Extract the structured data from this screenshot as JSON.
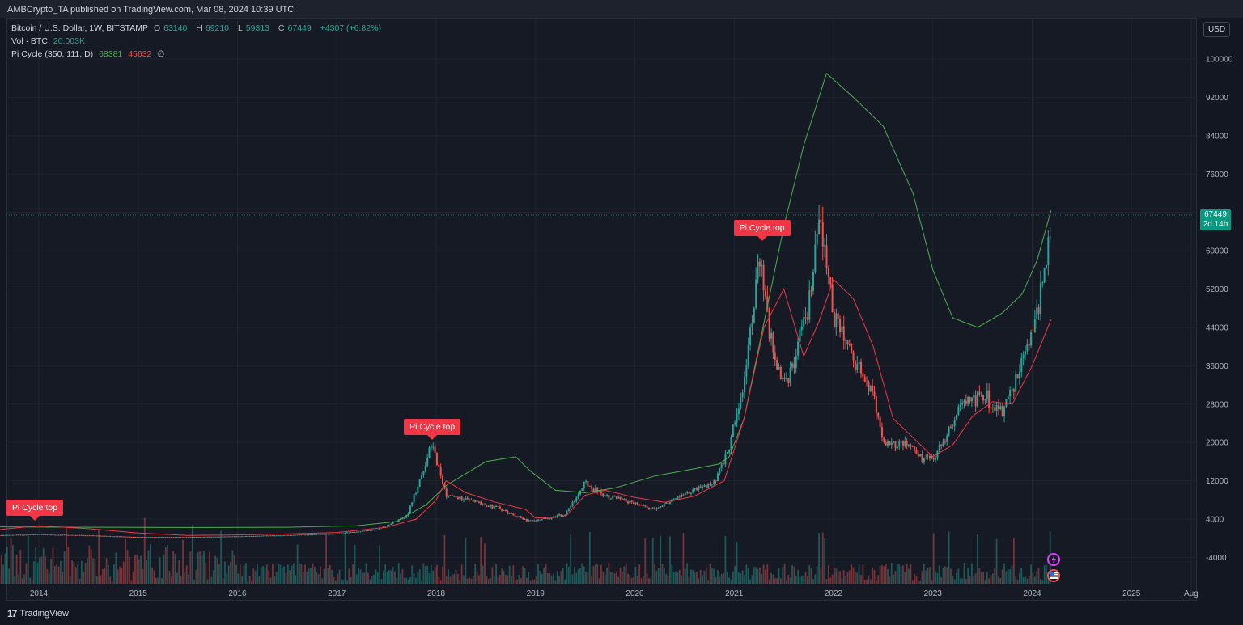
{
  "header": {
    "published": "AMBCrypto_TA published on TradingView.com, Mar 08, 2024 10:39 UTC"
  },
  "legend": {
    "symbol": "Bitcoin / U.S. Dollar, 1W, BITSTAMP",
    "open_label": "O",
    "open": "63140",
    "high_label": "H",
    "high": "69210",
    "low_label": "L",
    "low": "59313",
    "close_label": "C",
    "close": "67449",
    "change": "+4307 (+6.82%)",
    "vol_label": "Vol · BTC",
    "vol_value": "20.003K",
    "pi_label": "Pi Cycle (350, 111, D)",
    "pi_value1": "68381",
    "pi_value2": "45632",
    "pi_empty": "∅"
  },
  "currency_button": "USD",
  "price_tag": {
    "price": "67449",
    "countdown": "2d 14h"
  },
  "brand": "TradingView",
  "colors": {
    "up": "#26a69a",
    "down": "#ef5350",
    "ma_long": "#4caf50",
    "ma_short": "#f23645",
    "callout": "#f23645"
  },
  "icons": [
    "lightning-icon",
    "us-flag-icon"
  ],
  "chart_data": {
    "type": "line",
    "yaxis_ticks": [
      "100000",
      "92000",
      "84000",
      "76000",
      "68000",
      "60000",
      "52000",
      "44000",
      "36000",
      "28000",
      "20000",
      "12000",
      "4000",
      "-4000"
    ],
    "xaxis_ticks": [
      "2014",
      "2015",
      "2016",
      "2017",
      "2018",
      "2019",
      "2020",
      "2021",
      "2022",
      "2023",
      "2024",
      "2025",
      "Aug"
    ],
    "ylim": [
      -8000,
      104000
    ],
    "price_series": {
      "name": "Bitcoin / U.S. Dollar",
      "x": [
        2013.5,
        2014.0,
        2014.5,
        2015.0,
        2015.5,
        2016.0,
        2016.5,
        2017.0,
        2017.4,
        2017.7,
        2017.96,
        2018.1,
        2018.3,
        2018.6,
        2018.9,
        2019.0,
        2019.3,
        2019.5,
        2019.7,
        2019.95,
        2020.2,
        2020.5,
        2020.8,
        2020.95,
        2021.1,
        2021.25,
        2021.4,
        2021.55,
        2021.75,
        2021.86,
        2022.0,
        2022.2,
        2022.4,
        2022.5,
        2022.75,
        2022.9,
        2023.0,
        2023.3,
        2023.5,
        2023.7,
        2023.85,
        2024.0,
        2024.1,
        2024.19
      ],
      "y": [
        600,
        800,
        600,
        250,
        250,
        400,
        650,
        950,
        1800,
        4500,
        19500,
        9000,
        8000,
        6500,
        3800,
        3700,
        5000,
        11500,
        9000,
        7500,
        6000,
        9200,
        11500,
        19000,
        33000,
        58000,
        37000,
        33000,
        48000,
        66000,
        47000,
        38000,
        30000,
        20000,
        19500,
        16500,
        16500,
        28000,
        30000,
        26000,
        34000,
        43000,
        52000,
        67449
      ]
    },
    "series": [
      {
        "name": "Pi Cycle 350",
        "x": [
          2013.5,
          2014.5,
          2015.5,
          2016.5,
          2017.2,
          2017.6,
          2017.9,
          2018.1,
          2018.5,
          2018.8,
          2018.95,
          2019.2,
          2019.5,
          2019.8,
          2020.2,
          2020.6,
          2020.85,
          2020.95,
          2021.1,
          2021.3,
          2021.5,
          2021.7,
          2021.93,
          2022.2,
          2022.5,
          2022.8,
          2023.0,
          2023.2,
          2023.45,
          2023.7,
          2023.9,
          2024.05,
          2024.19
        ],
        "y": [
          2400,
          2300,
          2250,
          2300,
          2600,
          3500,
          7000,
          11000,
          16000,
          17000,
          14000,
          10000,
          9500,
          10500,
          13000,
          14500,
          15500,
          17000,
          25000,
          45000,
          65000,
          82000,
          97000,
          92000,
          86000,
          72000,
          56000,
          46000,
          44000,
          47000,
          51000,
          58000,
          68381
        ]
      },
      {
        "name": "Pi Cycle 111",
        "x": [
          2013.5,
          2014.0,
          2014.5,
          2015.0,
          2015.5,
          2016.0,
          2016.5,
          2017.0,
          2017.5,
          2017.8,
          2018.0,
          2018.1,
          2018.3,
          2018.6,
          2018.9,
          2019.0,
          2019.3,
          2019.5,
          2019.7,
          2020.0,
          2020.3,
          2020.6,
          2020.9,
          2021.1,
          2021.3,
          2021.5,
          2021.7,
          2021.85,
          2022.0,
          2022.2,
          2022.4,
          2022.6,
          2022.8,
          2023.0,
          2023.2,
          2023.4,
          2023.6,
          2023.8,
          2024.0,
          2024.19
        ],
        "y": [
          1600,
          2600,
          2000,
          1100,
          600,
          700,
          900,
          1200,
          2300,
          4000,
          8000,
          12000,
          9500,
          7500,
          6000,
          4200,
          4500,
          9000,
          10000,
          8500,
          7500,
          8800,
          12000,
          25000,
          44000,
          52000,
          38000,
          45000,
          54000,
          50000,
          40000,
          25000,
          21000,
          17000,
          19500,
          25500,
          28500,
          28000,
          36000,
          45632
        ]
      }
    ],
    "annotations": [
      {
        "text": "Pi Cycle top",
        "x": 2013.9,
        "y": 2600
      },
      {
        "text": "Pi Cycle top",
        "x": 2017.96,
        "y": 19500
      },
      {
        "text": "Pi Cycle top",
        "x": 2021.28,
        "y": 61000
      }
    ],
    "grid": true
  }
}
